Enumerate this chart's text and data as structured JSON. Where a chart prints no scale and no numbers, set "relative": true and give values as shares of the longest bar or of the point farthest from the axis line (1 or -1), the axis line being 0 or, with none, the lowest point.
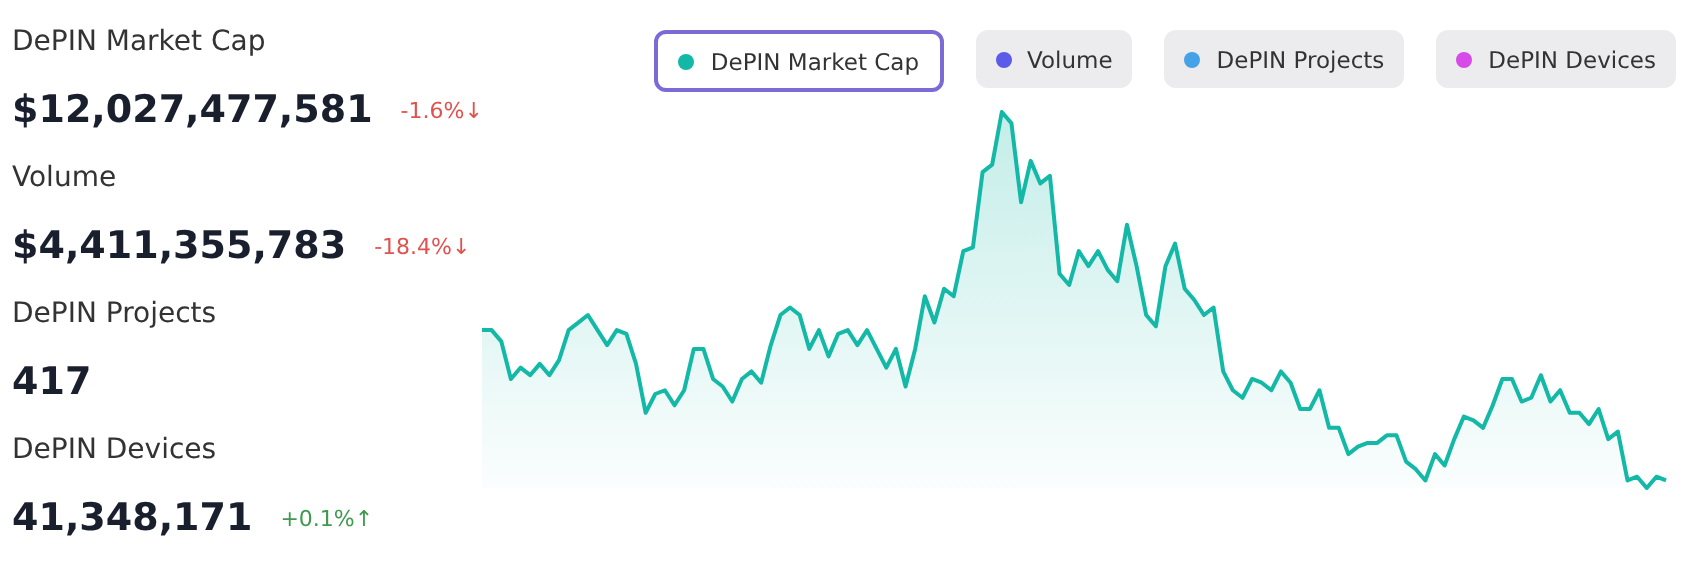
{
  "chart_data": {
    "type": "area",
    "relative": true,
    "legend": "top",
    "annotations": [
      "DePIN Market Cap",
      "$12,027,477,581",
      "-1.6%↓",
      "Volume",
      "$4,411,355,783",
      "-18.4%↓",
      "DePIN Projects",
      "417",
      "DePIN Devices",
      "41,348,171",
      "+0.1%↑",
      "Volume",
      "DePIN Projects",
      "DePIN Devices"
    ],
    "categories": [
      null,
      null,
      null,
      null,
      null,
      null,
      null,
      null,
      null,
      null,
      null,
      null,
      null,
      null,
      null,
      null,
      null,
      null,
      null,
      null,
      null,
      null,
      null,
      null,
      null,
      null,
      null,
      null,
      null,
      null,
      null,
      null,
      null,
      null,
      null,
      null,
      null,
      null,
      null,
      null,
      null,
      null,
      null,
      null,
      null,
      null,
      null,
      null,
      null,
      null,
      null,
      null,
      null,
      null,
      null,
      null,
      null,
      null,
      null,
      null,
      null,
      null,
      null,
      null,
      null,
      null,
      null,
      null,
      null,
      null,
      null,
      null,
      null,
      null,
      null,
      null,
      null,
      null,
      null,
      null,
      null,
      null,
      null,
      null,
      null,
      null,
      null,
      null,
      null,
      null,
      null,
      null,
      null,
      null,
      null,
      null,
      null,
      null,
      null,
      null,
      null,
      null,
      null,
      null,
      null,
      null,
      null,
      null,
      null,
      null,
      null,
      null,
      null,
      null,
      null,
      null,
      null,
      null,
      null,
      null,
      null,
      null,
      null,
      null
    ],
    "series": [
      {
        "name": "DePIN Market Cap",
        "color": "#14b8a6",
        "values": [
          0.42,
          0.42,
          0.39,
          0.29,
          0.32,
          0.3,
          0.33,
          0.3,
          0.34,
          0.42,
          0.44,
          0.46,
          0.42,
          0.38,
          0.42,
          0.41,
          0.33,
          0.2,
          0.25,
          0.26,
          0.22,
          0.26,
          0.37,
          0.37,
          0.29,
          0.27,
          0.23,
          0.29,
          0.31,
          0.28,
          0.38,
          0.46,
          0.48,
          0.46,
          0.37,
          0.42,
          0.35,
          0.41,
          0.42,
          0.38,
          0.42,
          0.37,
          0.32,
          0.37,
          0.27,
          0.37,
          0.51,
          0.44,
          0.53,
          0.51,
          0.63,
          0.64,
          0.84,
          0.86,
          1,
          0.97,
          0.76,
          0.87,
          0.81,
          0.83,
          0.57,
          0.54,
          0.63,
          0.59,
          0.63,
          0.58,
          0.55,
          0.7,
          0.59,
          0.46,
          0.43,
          0.59,
          0.65,
          0.53,
          0.5,
          0.46,
          0.48,
          0.31,
          0.26,
          0.24,
          0.29,
          0.28,
          0.26,
          0.31,
          0.28,
          0.21,
          0.21,
          0.26,
          0.16,
          0.16,
          0.09,
          0.11,
          0.12,
          0.12,
          0.14,
          0.14,
          0.07,
          0.05,
          0.02,
          0.09,
          0.06,
          0.13,
          0.19,
          0.18,
          0.16,
          0.22,
          0.29,
          0.29,
          0.23,
          0.24,
          0.3,
          0.23,
          0.26,
          0.2,
          0.2,
          0.17,
          0.21,
          0.13,
          0.15,
          0.02,
          0.03,
          0,
          0.03,
          0.02
        ]
      }
    ]
  }
}
